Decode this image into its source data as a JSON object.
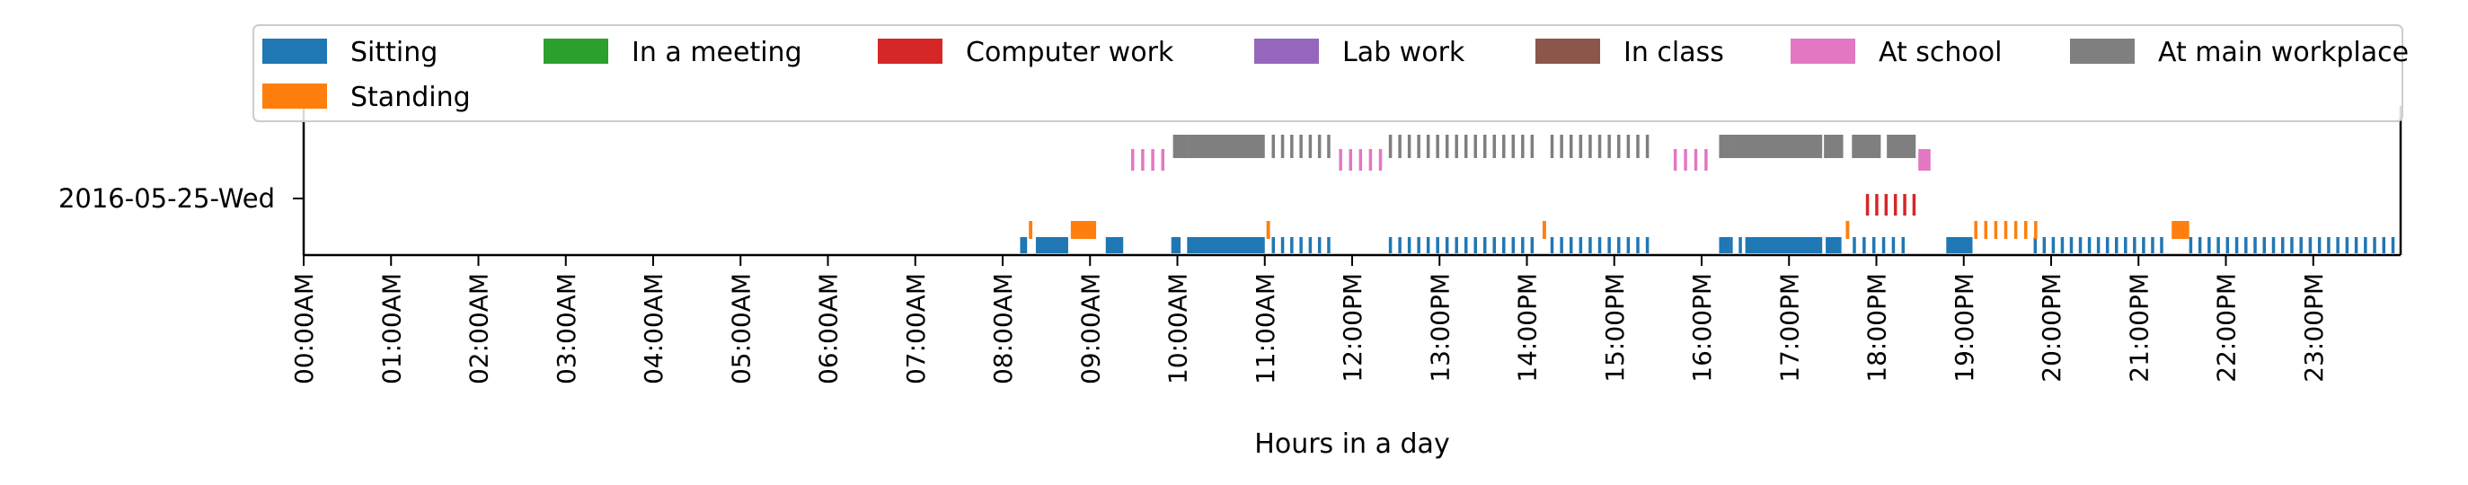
{
  "chart_data": {
    "type": "timeline",
    "title": "",
    "xlabel": "Hours in a day",
    "ylabel": "",
    "xlim_hours": [
      0,
      24
    ],
    "row_label": "2016-05-25-Wed",
    "x_tick_labels": [
      "00:00AM",
      "01:00AM",
      "02:00AM",
      "03:00AM",
      "04:00AM",
      "05:00AM",
      "06:00AM",
      "07:00AM",
      "08:00AM",
      "09:00AM",
      "10:00AM",
      "11:00AM",
      "12:00PM",
      "13:00PM",
      "14:00PM",
      "15:00PM",
      "16:00PM",
      "17:00PM",
      "18:00PM",
      "19:00PM",
      "20:00PM",
      "21:00PM",
      "22:00PM",
      "23:00PM"
    ],
    "legend_position": "top",
    "legend": [
      {
        "label": "Sitting",
        "color": "#1f77b4"
      },
      {
        "label": "In a meeting",
        "color": "#2ca02c"
      },
      {
        "label": "Computer work",
        "color": "#d62728"
      },
      {
        "label": "Lab work",
        "color": "#9467bd"
      },
      {
        "label": "In class",
        "color": "#8c564b"
      },
      {
        "label": "At school",
        "color": "#e377c2"
      },
      {
        "label": "At main workplace",
        "color": "#7f7f7f"
      },
      {
        "label": "Standing",
        "color": "#ff7f0e"
      }
    ],
    "series": [
      {
        "name": "Sitting",
        "color": "#1f77b4",
        "intervals_hours": [
          [
            8.2,
            8.28
          ],
          [
            8.38,
            8.75
          ],
          [
            9.18,
            9.38
          ],
          [
            9.93,
            10.0
          ],
          [
            10.0,
            11.0
          ],
          [
            11.08,
            11.82
          ],
          [
            12.42,
            14.15
          ],
          [
            14.27,
            15.47
          ],
          [
            16.2,
            16.32
          ],
          [
            16.32,
            17.37
          ],
          [
            17.42,
            17.6
          ],
          [
            17.73,
            18.4
          ],
          [
            18.8,
            19.1
          ],
          [
            19.8,
            21.35
          ],
          [
            21.58,
            24.0
          ]
        ]
      },
      {
        "name": "Standing",
        "color": "#ff7f0e",
        "intervals_hours": [
          [
            8.3,
            8.34
          ],
          [
            8.78,
            9.07
          ],
          [
            11.02,
            11.06
          ],
          [
            14.18,
            14.22
          ],
          [
            17.65,
            17.69
          ],
          [
            19.12,
            19.92
          ],
          [
            21.38,
            21.58
          ]
        ]
      },
      {
        "name": "Computer work",
        "color": "#d62728",
        "intervals_hours": [
          [
            17.88,
            18.52
          ]
        ]
      },
      {
        "name": "At school",
        "color": "#e377c2",
        "intervals_hours": [
          [
            9.47,
            9.93
          ],
          [
            11.85,
            12.42
          ],
          [
            15.68,
            16.15
          ],
          [
            18.48,
            18.62
          ]
        ]
      },
      {
        "name": "At main workplace",
        "color": "#7f7f7f",
        "intervals_hours": [
          [
            9.95,
            10.12
          ],
          [
            10.12,
            11.0
          ],
          [
            11.08,
            11.82
          ],
          [
            12.42,
            14.15
          ],
          [
            14.27,
            15.47
          ],
          [
            16.2,
            16.32
          ],
          [
            16.32,
            17.37
          ],
          [
            17.4,
            17.62
          ],
          [
            17.72,
            18.05
          ],
          [
            18.12,
            18.45
          ]
        ]
      }
    ]
  }
}
